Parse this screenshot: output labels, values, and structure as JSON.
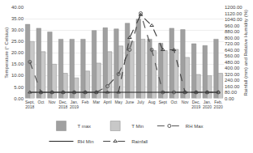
{
  "chart_data": {
    "type": "bar",
    "categories": [
      "Sept,\n2018",
      "Oct",
      "Nov",
      "Dec,\n2018",
      "Jan,\n2019",
      "Feb",
      "Mar",
      "April",
      "May",
      "June",
      "July",
      "Aug",
      "Sept",
      "Oct",
      "Nov",
      "Dec,\n2019",
      "Jan,\n2020",
      "Feb,\n2020"
    ],
    "ylabel": "Temperature (° Celsius)",
    "y2label": "Rainfall (mm) and Relative Humidity (%)",
    "ylim": [
      0,
      40
    ],
    "yticks": [
      {
        "value": 0,
        "label": "0.00"
      },
      {
        "value": 5,
        "label": "5.00"
      },
      {
        "value": 10,
        "label": "10.00"
      },
      {
        "value": 15,
        "label": "15.00"
      },
      {
        "value": 20,
        "label": "20.00"
      },
      {
        "value": 25,
        "label": "25.00"
      },
      {
        "value": 30,
        "label": "30.00"
      },
      {
        "value": 35,
        "label": "35.00"
      },
      {
        "value": 40,
        "label": "40.00"
      }
    ],
    "y2lim": [
      0,
      1200
    ],
    "y2ticks": [
      {
        "value": 0,
        "label": "0.00"
      },
      {
        "value": 80,
        "label": "80.00"
      },
      {
        "value": 160,
        "label": "160.00"
      },
      {
        "value": 240,
        "label": "240.00"
      },
      {
        "value": 320,
        "label": "320.00"
      },
      {
        "value": 400,
        "label": "400.00"
      },
      {
        "value": 480,
        "label": "480.00"
      },
      {
        "value": 560,
        "label": "560.00"
      },
      {
        "value": 640,
        "label": "640.00"
      },
      {
        "value": 720,
        "label": "720.00"
      },
      {
        "value": 800,
        "label": "800.00"
      },
      {
        "value": 880,
        "label": "880.00"
      },
      {
        "value": 960,
        "label": "960.00"
      },
      {
        "value": 1040,
        "label": "1040.00"
      },
      {
        "value": 1120,
        "label": "1120.00"
      },
      {
        "value": 1200,
        "label": "1200.00"
      }
    ],
    "grid": true,
    "legend": "bottom",
    "series": [
      {
        "name": "T max",
        "type": "bar",
        "color": "#a0a0a0",
        "values": [
          32.5,
          30.8,
          29.2,
          26.0,
          26.0,
          26.0,
          29.8,
          31.0,
          30.5,
          33.0,
          34.8,
          26.0,
          24.2,
          30.8,
          30.2,
          24.0,
          23.2,
          26.0
        ]
      },
      {
        "name": "T Min",
        "type": "bar",
        "color": "#c8c8c8",
        "values": [
          25.0,
          20.5,
          15.0,
          11.0,
          9.0,
          12.0,
          15.5,
          20.5,
          23.0,
          25.0,
          26.0,
          21.0,
          21.0,
          21.5,
          18.0,
          10.5,
          10.0,
          11.0
        ]
      },
      {
        "name": "RH Max",
        "type": "line",
        "axis": "y2",
        "color": "#555555",
        "marker": "circle",
        "line_style": "dashed",
        "values": [
          480,
          80,
          80,
          80,
          80,
          80,
          80,
          160,
          320,
          640,
          1120,
          640,
          80,
          80,
          80,
          80,
          80,
          80
        ]
      },
      {
        "name": "RH Min",
        "type": "line",
        "axis": "y2",
        "color": "#222222",
        "line_style": "solid",
        "values": [
          80,
          80,
          80,
          80,
          80,
          80,
          80,
          80,
          80,
          80,
          80,
          80,
          80,
          80,
          80,
          80,
          80,
          80
        ]
      },
      {
        "name": "Rainfall",
        "type": "line",
        "axis": "y2",
        "color": "#444444",
        "marker": "triangle",
        "line_style": "dashed",
        "values": [
          80,
          80,
          80,
          80,
          80,
          80,
          80,
          80,
          80,
          800,
          1100,
          960,
          640,
          640,
          80,
          80,
          80,
          80
        ]
      }
    ]
  }
}
